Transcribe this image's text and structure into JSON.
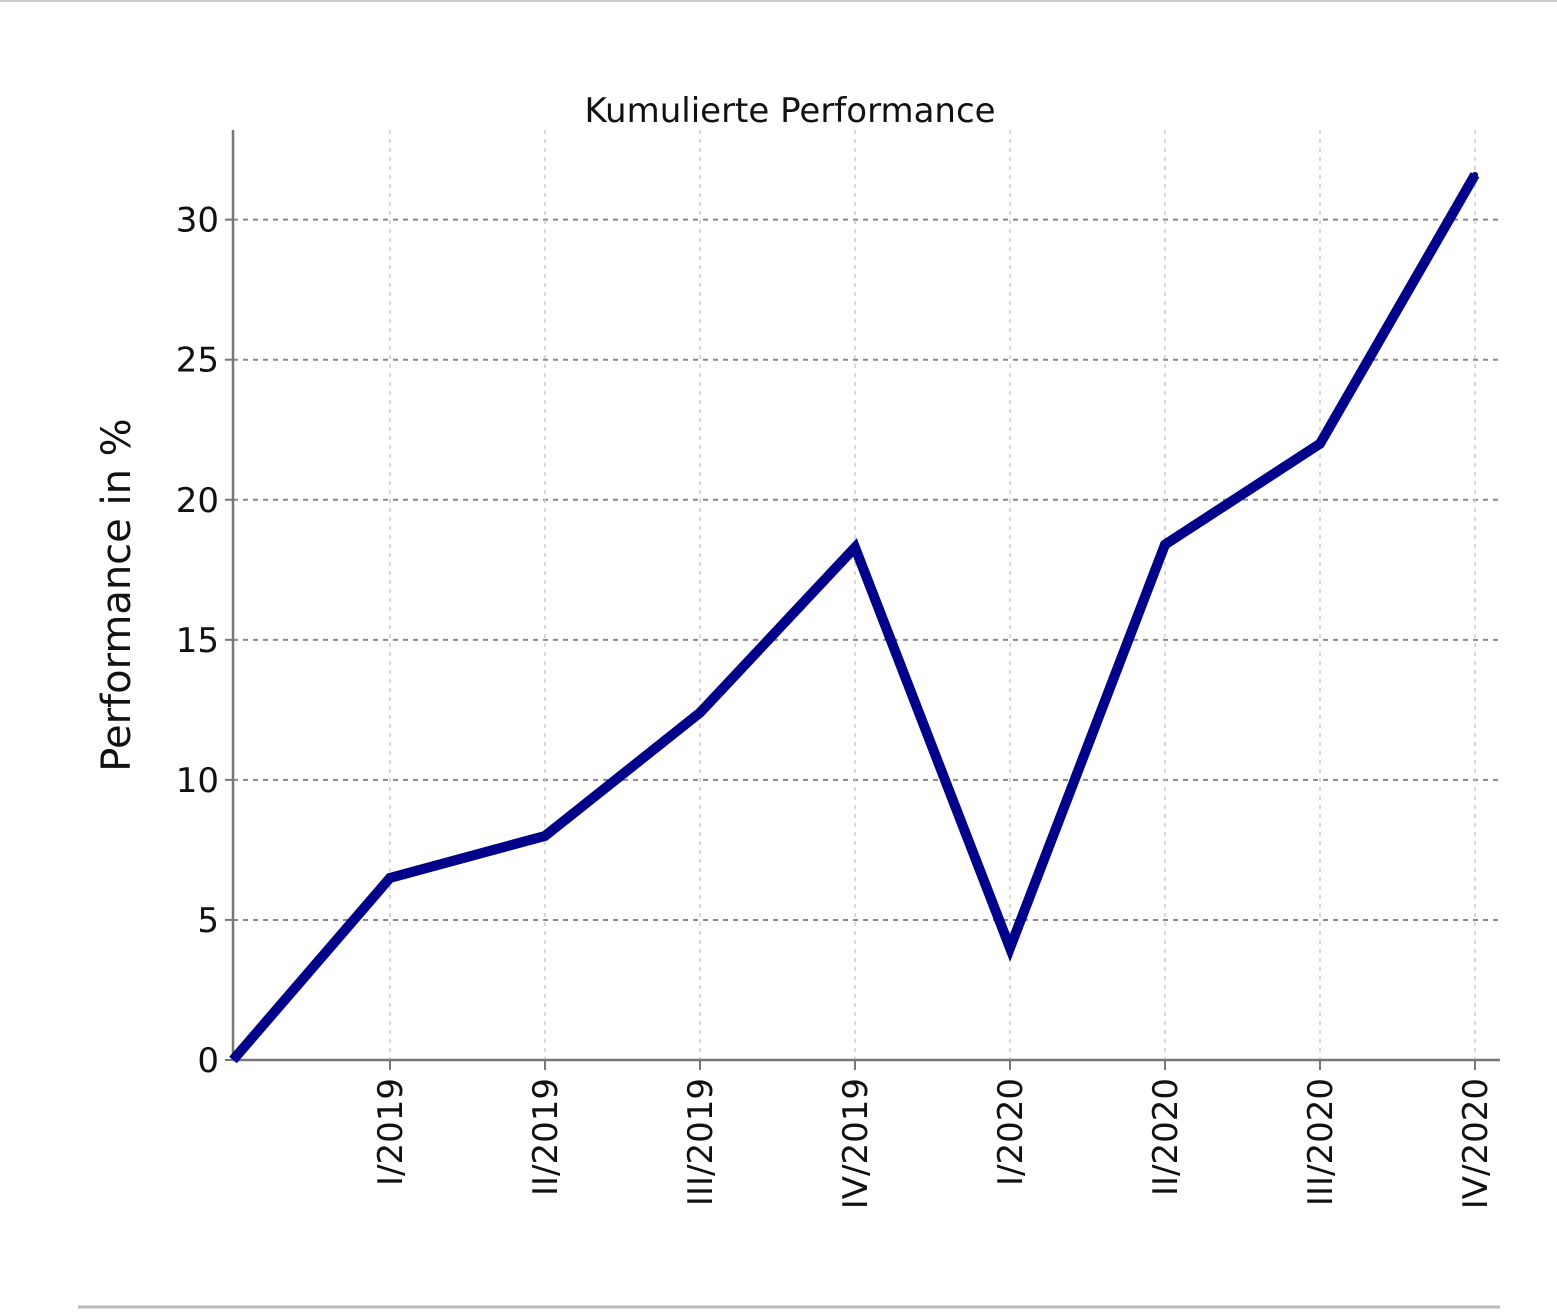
{
  "chart_data": {
    "type": "line",
    "title": "Kumulierte Performance",
    "xlabel": "",
    "ylabel": "Performance in %",
    "x_start": 0,
    "categories": [
      "I/2019",
      "II/2019",
      "III/2019",
      "IV/2019",
      "I/2020",
      "II/2020",
      "III/2020",
      "IV/2020"
    ],
    "series": [
      {
        "values": [
          6.5,
          8.0,
          12.4,
          18.3,
          4.0,
          18.4,
          22.0,
          31.6
        ],
        "color": "#00008b"
      }
    ],
    "yticks": [
      0,
      5,
      10,
      15,
      20,
      25,
      30
    ],
    "ylim": [
      0,
      33.2
    ],
    "grid": true
  }
}
